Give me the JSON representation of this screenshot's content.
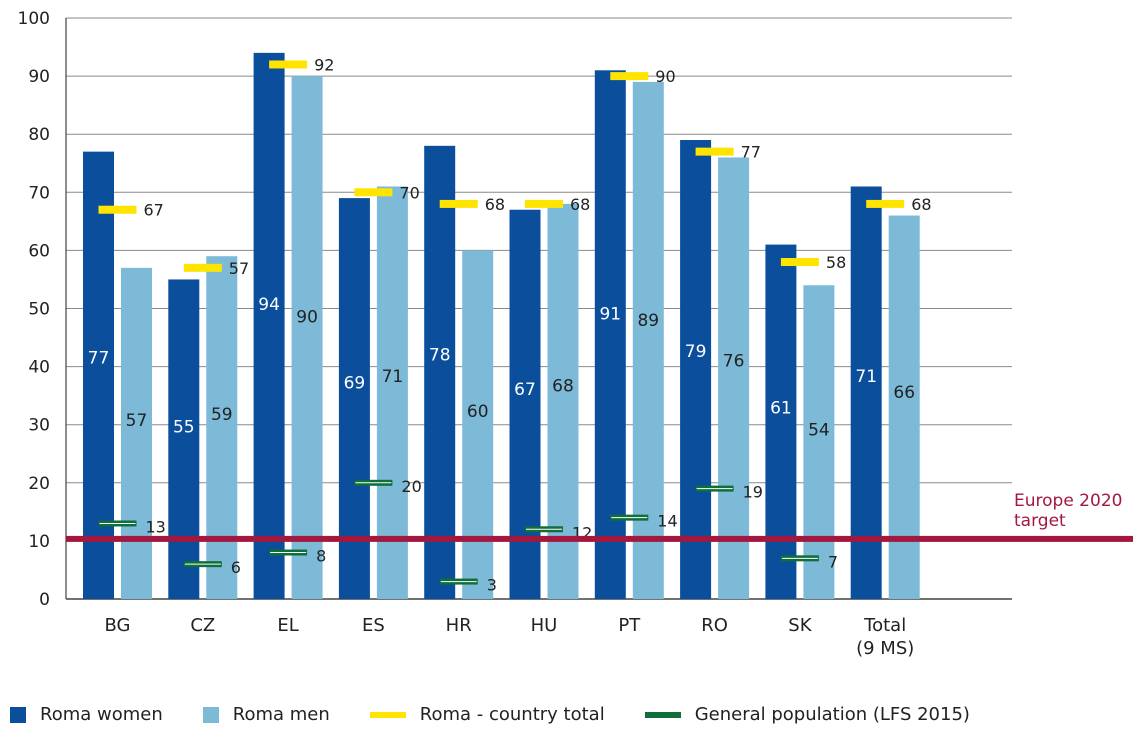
{
  "chart_data": {
    "type": "bar",
    "categories": [
      "BG",
      "CZ",
      "EL",
      "ES",
      "HR",
      "HU",
      "PT",
      "RO",
      "SK",
      "Total (9 MS)"
    ],
    "category_lines": [
      [
        "BG"
      ],
      [
        "CZ"
      ],
      [
        "EL"
      ],
      [
        "ES"
      ],
      [
        "HR"
      ],
      [
        "HU"
      ],
      [
        "PT"
      ],
      [
        "RO"
      ],
      [
        "SK"
      ],
      [
        "Total",
        "(9 MS)"
      ]
    ],
    "ylim": [
      0,
      100
    ],
    "yticks": [
      0,
      10,
      20,
      30,
      40,
      50,
      60,
      70,
      80,
      90,
      100
    ],
    "grid": true,
    "series": [
      {
        "name": "Roma women",
        "type": "bar",
        "color": "#0b4f9c",
        "values": [
          77,
          55,
          94,
          69,
          78,
          67,
          91,
          79,
          61,
          71
        ]
      },
      {
        "name": "Roma men",
        "type": "bar",
        "color": "#7dbad8",
        "values": [
          57,
          59,
          90,
          71,
          60,
          68,
          89,
          76,
          54,
          66
        ]
      },
      {
        "name": "Roma - country total",
        "type": "marker",
        "color": "#ffe400",
        "values": [
          67,
          57,
          92,
          70,
          68,
          68,
          90,
          77,
          58,
          68
        ]
      },
      {
        "name": "General population (LFS 2015)",
        "type": "marker",
        "color": "#0f6e3a",
        "values": [
          13,
          6,
          8,
          20,
          3,
          12,
          14,
          19,
          7,
          null
        ]
      }
    ],
    "target": {
      "value": 10,
      "label_lines": [
        "Europe 2020",
        "target"
      ],
      "color": "#a4173f"
    }
  }
}
